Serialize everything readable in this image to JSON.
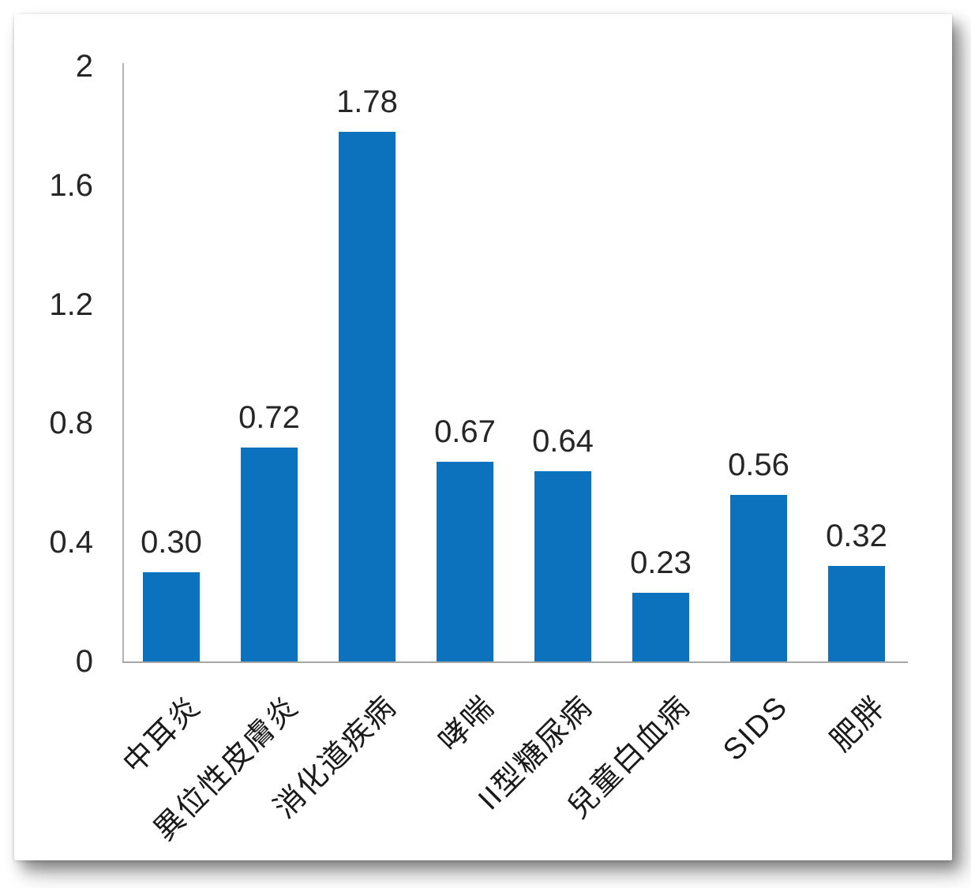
{
  "chart_data": {
    "type": "bar",
    "title": "",
    "xlabel": "",
    "ylabel": "",
    "categories": [
      "中耳炎",
      "異位性皮膚炎",
      "消化道疾病",
      "哮喘",
      "II型糖尿病",
      "兒童白血病",
      "SIDS",
      "肥胖"
    ],
    "values": [
      0.3,
      0.72,
      1.78,
      0.67,
      0.64,
      0.23,
      0.56,
      0.32
    ],
    "data_labels": [
      "0.30",
      "0.72",
      "1.78",
      "0.67",
      "0.64",
      "0.23",
      "0.56",
      "0.32"
    ],
    "y_tick_labels": [
      "0",
      "0.4",
      "0.8",
      "1.2",
      "1.6",
      "2"
    ],
    "y_tick_values": [
      0,
      0.4,
      0.8,
      1.2,
      1.6,
      2
    ],
    "ylim": [
      0,
      2
    ],
    "grid": false,
    "legend": null,
    "x_label_rotation_deg": -45,
    "bar_color": "#0d72bd",
    "axis_color": "#a6a6a6",
    "label_color": "#262626"
  }
}
